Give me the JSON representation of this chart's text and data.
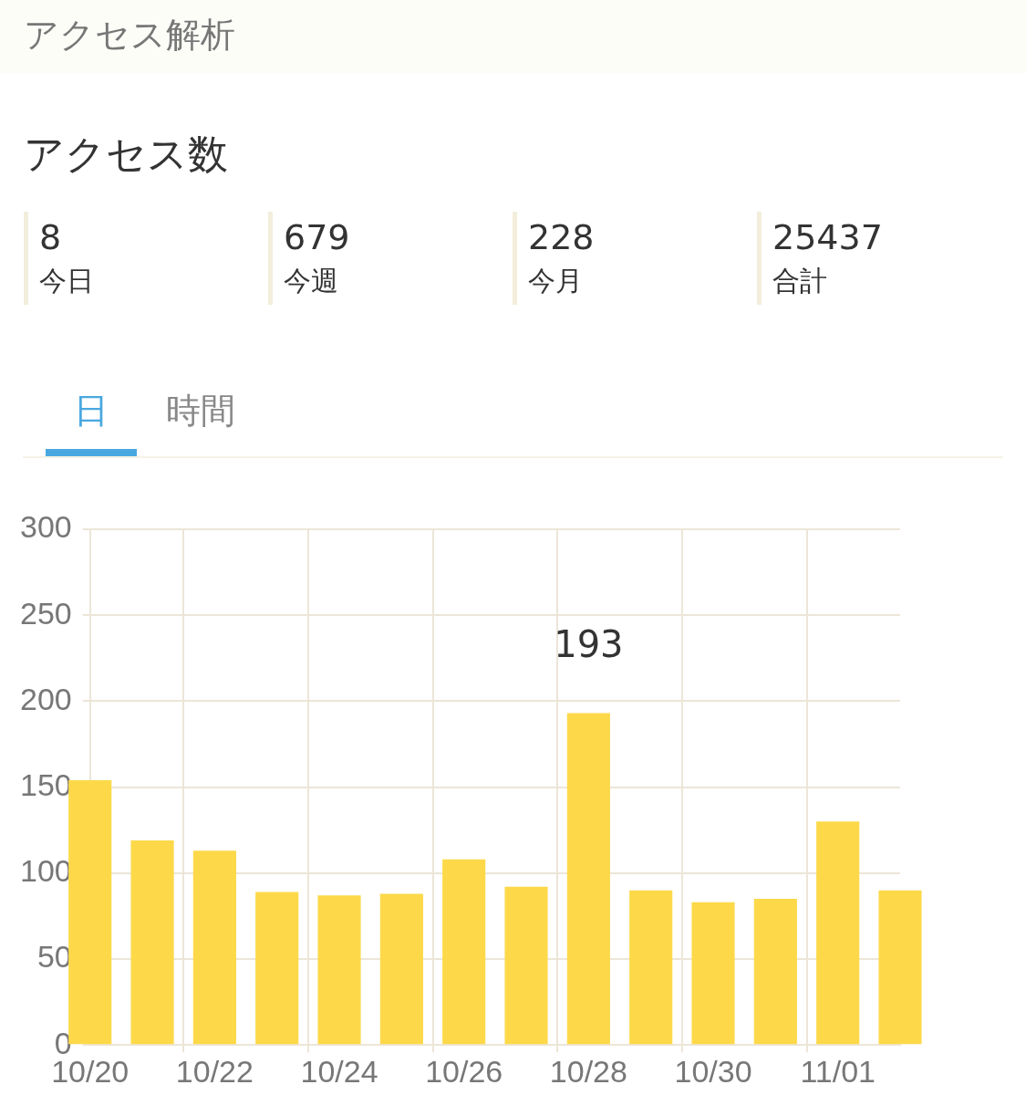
{
  "chart_data": {
    "type": "bar",
    "title": "アクセス解析",
    "subtitle": "アクセス数",
    "annotations": [
      "8",
      "今日",
      "679",
      "今週",
      "228",
      "今月",
      "25437",
      "合計",
      "日",
      "時間"
    ],
    "categories": [
      "10/20",
      null,
      "10/22",
      null,
      "10/24",
      null,
      "10/26",
      null,
      "10/28",
      null,
      "10/30",
      null,
      "11/01",
      null
    ],
    "values": [
      154,
      119,
      113,
      89,
      87,
      88,
      108,
      92,
      193,
      90,
      83,
      85,
      130,
      90
    ],
    "value_labels": [
      null,
      null,
      null,
      null,
      null,
      null,
      null,
      null,
      "193",
      null,
      null,
      null,
      null,
      null
    ],
    "color": "#fdd94a",
    "ylim": [
      0,
      300
    ],
    "yticks": [
      0,
      50,
      100,
      150,
      200,
      250,
      300
    ],
    "grid": true,
    "legend": false
  }
}
